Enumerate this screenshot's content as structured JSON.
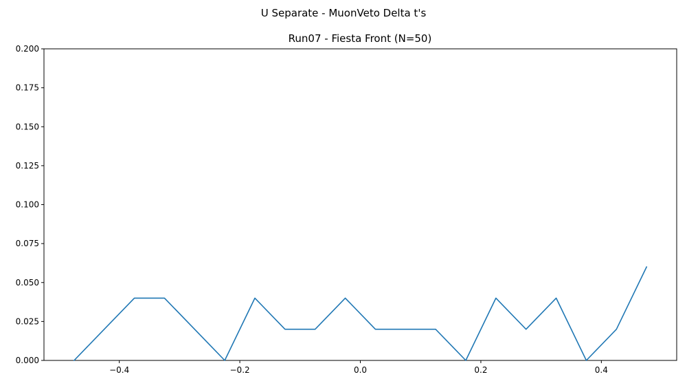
{
  "chart_data": {
    "type": "line",
    "suptitle": "U Separate - MuonVeto Delta t's",
    "title": "Run07 - Fiesta Front (N=50)",
    "xlabel": "",
    "ylabel": "",
    "xlim": [
      -0.525,
      0.525
    ],
    "ylim": [
      0,
      0.2
    ],
    "x_ticks": [
      -0.4,
      -0.2,
      0.0,
      0.2,
      0.4
    ],
    "x_tick_labels": [
      "−0.4",
      "−0.2",
      "0.0",
      "0.2",
      "0.4"
    ],
    "y_ticks": [
      0,
      0.025,
      0.05,
      0.075,
      0.1,
      0.125,
      0.15,
      0.175,
      0.2
    ],
    "y_tick_labels": [
      "0.000",
      "0.025",
      "0.050",
      "0.075",
      "0.100",
      "0.125",
      "0.150",
      "0.175",
      "0.200"
    ],
    "grid": false,
    "series": [
      {
        "color": "#1f77b4",
        "x": [
          -0.475,
          -0.425,
          -0.375,
          -0.325,
          -0.275,
          -0.225,
          -0.175,
          -0.125,
          -0.075,
          -0.025,
          0.025,
          0.075,
          0.125,
          0.175,
          0.225,
          0.275,
          0.325,
          0.375,
          0.425,
          0.475
        ],
        "y": [
          0.0,
          0.02,
          0.04,
          0.04,
          0.02,
          0.0,
          0.04,
          0.02,
          0.02,
          0.04,
          0.02,
          0.02,
          0.02,
          0.0,
          0.04,
          0.02,
          0.04,
          0.0,
          0.02,
          0.06
        ]
      }
    ]
  }
}
